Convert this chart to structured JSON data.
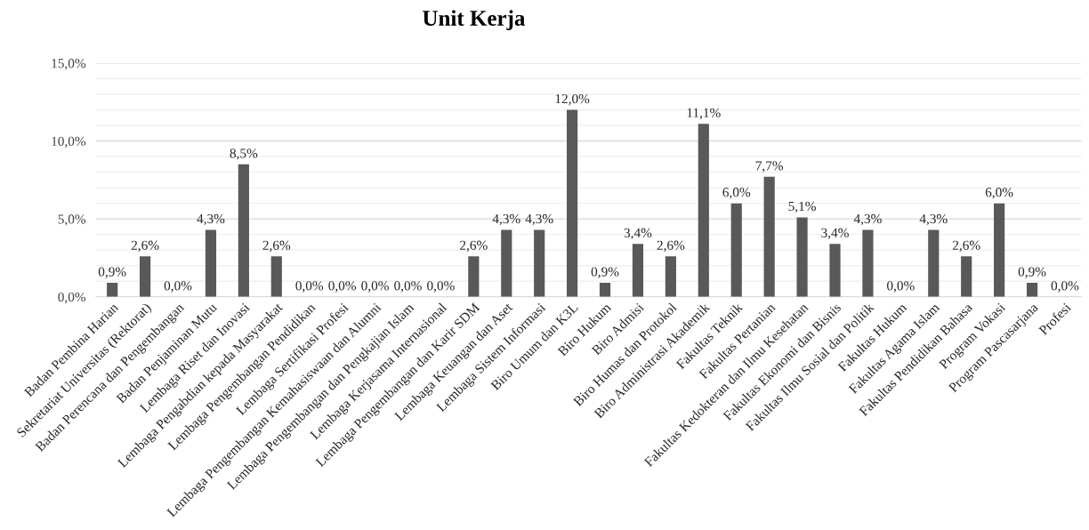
{
  "chart_data": {
    "type": "bar",
    "title": "Unit Kerja",
    "categories": [
      "Badan Pembina Harian",
      "Sekretariat Universitas (Rektorat)",
      "Badan Perencana dan Pengembangan",
      "Badan Penjaminan Mutu",
      "Lembaga Riset dan Inovasi",
      "Lembaga Pengabdian kepada Masyarakat",
      "Lembaga Pengembangan Pendidikan",
      "Lembaga Sertifikasi Profesi",
      "Lembaga Pengembangan Kemahasiswaan dan Alumni",
      "Lembaga Pengembangan dan Pengkajian Islam",
      "Lembaga Kerjasama Internasional",
      "Lembaga Pengembangan dan Karir SDM",
      "Lembaga Keuangan dan Aset",
      "Lembaga Sistem Informasi",
      "Biro Umum dan K3L",
      "Biro Hukum",
      "Biro Admisi",
      "Biro Humas dan Protokol",
      "Biro Administrasi Akademik",
      "Fakultas Teknik",
      "Fakultas Pertanian",
      "Fakultas Kedokteran dan Ilmu Kesehatan",
      "Fakultas Ekonomi dan Bisnis",
      "Fakultas Ilmu Sosial dan Politik",
      "Fakultas Hukum",
      "Fakultas Agama Islam",
      "Fakultas Pendidikan Bahasa",
      "Program Vokasi",
      "Program Pascasarjana",
      "Profesi"
    ],
    "values": [
      0.9,
      2.6,
      0.0,
      4.3,
      8.5,
      2.6,
      0.0,
      0.0,
      0.0,
      0.0,
      0.0,
      2.6,
      4.3,
      4.3,
      12.0,
      0.9,
      3.4,
      2.6,
      11.1,
      6.0,
      7.7,
      5.1,
      3.4,
      4.3,
      0.0,
      4.3,
      2.6,
      6.0,
      0.9,
      0.0
    ],
    "value_labels": [
      "0,9%",
      "2,6%",
      "0,0%",
      "4,3%",
      "8,5%",
      "2,6%",
      "0,0%",
      "0,0%",
      "0,0%",
      "0,0%",
      "0,0%",
      "2,6%",
      "4,3%",
      "4,3%",
      "12,0%",
      "0,9%",
      "3,4%",
      "2,6%",
      "11,1%",
      "6,0%",
      "7,7%",
      "5,1%",
      "3,4%",
      "4,3%",
      "0,0%",
      "4,3%",
      "2,6%",
      "6,0%",
      "0,9%",
      "0,0%"
    ],
    "color": "#595959",
    "ylim": [
      0,
      15
    ],
    "yticks": [
      {
        "value": 0,
        "label": "0,0%"
      },
      {
        "value": 1,
        "label": null
      },
      {
        "value": 2,
        "label": null
      },
      {
        "value": 3,
        "label": null
      },
      {
        "value": 4,
        "label": null
      },
      {
        "value": 5,
        "label": "5,0%"
      },
      {
        "value": 6,
        "label": null
      },
      {
        "value": 7,
        "label": null
      },
      {
        "value": 8,
        "label": null
      },
      {
        "value": 9,
        "label": null
      },
      {
        "value": 10,
        "label": "10,0%"
      },
      {
        "value": 11,
        "label": null
      },
      {
        "value": 12,
        "label": null
      },
      {
        "value": 13,
        "label": null
      },
      {
        "value": 14,
        "label": null
      },
      {
        "value": 15,
        "label": "15,0%"
      }
    ],
    "grid": "y"
  }
}
